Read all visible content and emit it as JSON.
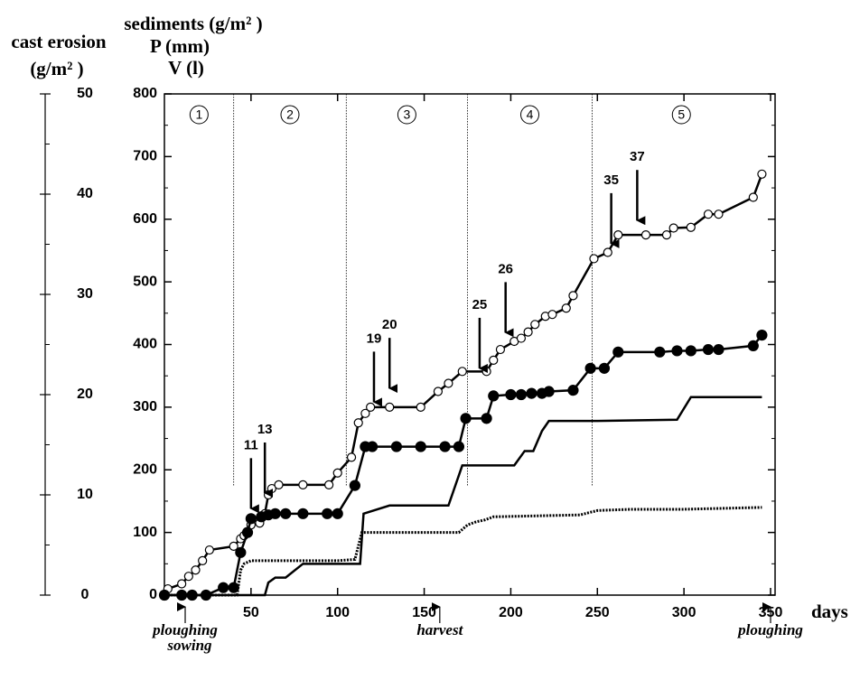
{
  "chart_data": {
    "type": "line",
    "y_label_lines": [
      "sediments (g/m² )",
      "P (mm)",
      "V (l)"
    ],
    "y2_label_lines": [
      "cast erosion",
      "(g/m² )"
    ],
    "x_label": "days",
    "xlim": [
      0,
      350
    ],
    "xticks": [
      50,
      100,
      150,
      200,
      250,
      300,
      350
    ],
    "ylim": [
      0,
      800
    ],
    "yticks": [
      0,
      100,
      200,
      300,
      400,
      500,
      600,
      700,
      800
    ],
    "y_minor_ticks": [
      50,
      150,
      250,
      350,
      450,
      550,
      650,
      750
    ],
    "y2lim": [
      0,
      50
    ],
    "y2ticks": [
      0,
      10,
      20,
      30,
      40,
      50
    ],
    "y2_minor_ticks": [
      5,
      15,
      25,
      35,
      45
    ],
    "regions": {
      "labels": [
        "1",
        "2",
        "3",
        "4",
        "5"
      ],
      "boundaries": [
        40,
        105,
        175,
        247
      ]
    },
    "series": [
      {
        "color": "#000000",
        "marker": "open",
        "style": "solid",
        "x": [
          2,
          10,
          14,
          18,
          22,
          26,
          40,
          44,
          46,
          48,
          50,
          55,
          58,
          60,
          62,
          66,
          80,
          95,
          100,
          108,
          112,
          116,
          119,
          130,
          148,
          158,
          164,
          172,
          186,
          190,
          194,
          202,
          206,
          210,
          214,
          220,
          224,
          232,
          236,
          248,
          256,
          262,
          278,
          290,
          294,
          304,
          314,
          320,
          340,
          345
        ],
        "values": [
          10,
          18,
          30,
          40,
          55,
          72,
          78,
          90,
          95,
          100,
          112,
          115,
          130,
          160,
          170,
          176,
          176,
          176,
          195,
          220,
          275,
          290,
          300,
          300,
          300,
          325,
          338,
          357,
          357,
          375,
          392,
          405,
          410,
          420,
          432,
          445,
          448,
          458,
          478,
          537,
          547,
          575,
          575,
          575,
          586,
          587,
          608,
          608,
          635,
          672
        ]
      },
      {
        "color": "#000000",
        "marker": "filled",
        "style": "solid",
        "x": [
          0,
          10,
          16,
          24,
          34,
          40,
          44,
          48,
          50,
          56,
          60,
          64,
          70,
          80,
          94,
          100,
          110,
          116,
          120,
          134,
          148,
          162,
          170,
          174,
          186,
          190,
          200,
          206,
          212,
          218,
          222,
          236,
          246,
          254,
          262,
          286,
          296,
          304,
          314,
          320,
          340,
          345
        ],
        "values": [
          0,
          0,
          0,
          0,
          12,
          12,
          68,
          100,
          122,
          125,
          128,
          130,
          130,
          130,
          130,
          130,
          175,
          237,
          237,
          237,
          237,
          237,
          237,
          282,
          282,
          318,
          320,
          320,
          322,
          322,
          325,
          327,
          362,
          362,
          388,
          388,
          390,
          390,
          392,
          392,
          398,
          415
        ]
      },
      {
        "color": "#000000",
        "marker": "none",
        "style": "solid",
        "x": [
          0,
          58,
          60,
          64,
          70,
          80,
          113,
          115,
          130,
          164,
          172,
          202,
          208,
          213,
          218,
          222,
          250,
          296,
          304,
          345
        ],
        "values": [
          0,
          0,
          20,
          28,
          28,
          50,
          50,
          130,
          143,
          143,
          207,
          207,
          230,
          230,
          262,
          278,
          278,
          280,
          316,
          316
        ]
      },
      {
        "color": "#000000",
        "marker": "none",
        "style": "dotted",
        "x": [
          0,
          42,
          44,
          46,
          50,
          70,
          100,
          110,
          114,
          170,
          175,
          180,
          185,
          190,
          240,
          250,
          270,
          300,
          345
        ],
        "values": [
          0,
          0,
          40,
          50,
          55,
          55,
          55,
          57,
          100,
          100,
          112,
          117,
          120,
          125,
          128,
          135,
          137,
          137,
          140
        ]
      }
    ],
    "annotations": [
      {
        "label": "11",
        "x": 50,
        "y": 135
      },
      {
        "label": "13",
        "x": 58,
        "y": 160
      },
      {
        "label": "19",
        "x": 121,
        "y": 305
      },
      {
        "label": "20",
        "x": 130,
        "y": 327
      },
      {
        "label": "25",
        "x": 182,
        "y": 359
      },
      {
        "label": "26",
        "x": 197,
        "y": 416
      },
      {
        "label": "35",
        "x": 258,
        "y": 558
      },
      {
        "label": "37",
        "x": 273,
        "y": 595
      }
    ],
    "events": [
      {
        "x": 12,
        "labels": [
          "ploughing",
          "sowing"
        ]
      },
      {
        "x": 159,
        "labels": [
          "harvest"
        ]
      },
      {
        "x": 350,
        "labels": [
          "ploughing"
        ]
      }
    ]
  }
}
